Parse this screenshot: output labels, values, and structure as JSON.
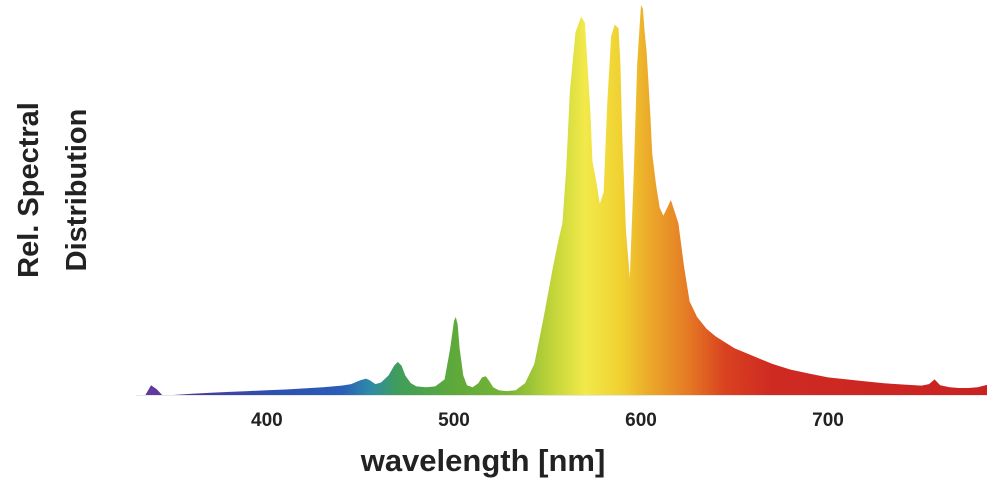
{
  "chart_data": {
    "type": "area",
    "xlabel": "wavelength [nm]",
    "ylabel_lines": [
      "Rel. Spectral",
      "Distribution"
    ],
    "xlim": [
      330,
      785
    ],
    "ylim": [
      0,
      1
    ],
    "x_ticks": [
      400,
      500,
      600,
      700
    ],
    "grid": false,
    "legend": "none",
    "series": [
      {
        "x": [
          330,
          335,
          338,
          341,
          344,
          350,
          360,
          370,
          380,
          390,
          400,
          410,
          420,
          430,
          440,
          445,
          450,
          453,
          455,
          458,
          461,
          465,
          468,
          470,
          472,
          474,
          477,
          480,
          485,
          490,
          495,
          498,
          500,
          501,
          502,
          503,
          505,
          507,
          510,
          513,
          515,
          517,
          519,
          521,
          524,
          528,
          533,
          538,
          543,
          548,
          553,
          556,
          558,
          560,
          562,
          565,
          568,
          570,
          572,
          573,
          574,
          576,
          578,
          580,
          582,
          584,
          586,
          588,
          589,
          590,
          592,
          594,
          596,
          598,
          600,
          601,
          602,
          603,
          604,
          605,
          606,
          608,
          610,
          612,
          614,
          616,
          618,
          620,
          623,
          626,
          630,
          635,
          640,
          650,
          660,
          670,
          680,
          690,
          700,
          710,
          720,
          730,
          740,
          750,
          754,
          757,
          760,
          765,
          770,
          775,
          780,
          785
        ],
        "y": [
          0.0,
          0.0,
          0.025,
          0.015,
          0.0,
          0.0,
          0.003,
          0.006,
          0.008,
          0.01,
          0.012,
          0.014,
          0.017,
          0.02,
          0.024,
          0.028,
          0.038,
          0.042,
          0.038,
          0.028,
          0.032,
          0.05,
          0.075,
          0.085,
          0.075,
          0.05,
          0.03,
          0.022,
          0.02,
          0.022,
          0.04,
          0.12,
          0.19,
          0.2,
          0.18,
          0.12,
          0.05,
          0.025,
          0.02,
          0.03,
          0.045,
          0.048,
          0.035,
          0.02,
          0.012,
          0.01,
          0.012,
          0.03,
          0.08,
          0.2,
          0.33,
          0.4,
          0.44,
          0.58,
          0.78,
          0.93,
          0.97,
          0.955,
          0.8,
          0.72,
          0.6,
          0.55,
          0.49,
          0.52,
          0.75,
          0.92,
          0.95,
          0.94,
          0.85,
          0.66,
          0.42,
          0.3,
          0.55,
          0.85,
          1.0,
          0.99,
          0.93,
          0.88,
          0.8,
          0.72,
          0.62,
          0.54,
          0.48,
          0.46,
          0.48,
          0.5,
          0.47,
          0.44,
          0.33,
          0.24,
          0.2,
          0.17,
          0.15,
          0.12,
          0.1,
          0.08,
          0.065,
          0.055,
          0.045,
          0.04,
          0.035,
          0.03,
          0.027,
          0.024,
          0.028,
          0.04,
          0.025,
          0.02,
          0.018,
          0.018,
          0.02,
          0.026
        ]
      }
    ]
  }
}
